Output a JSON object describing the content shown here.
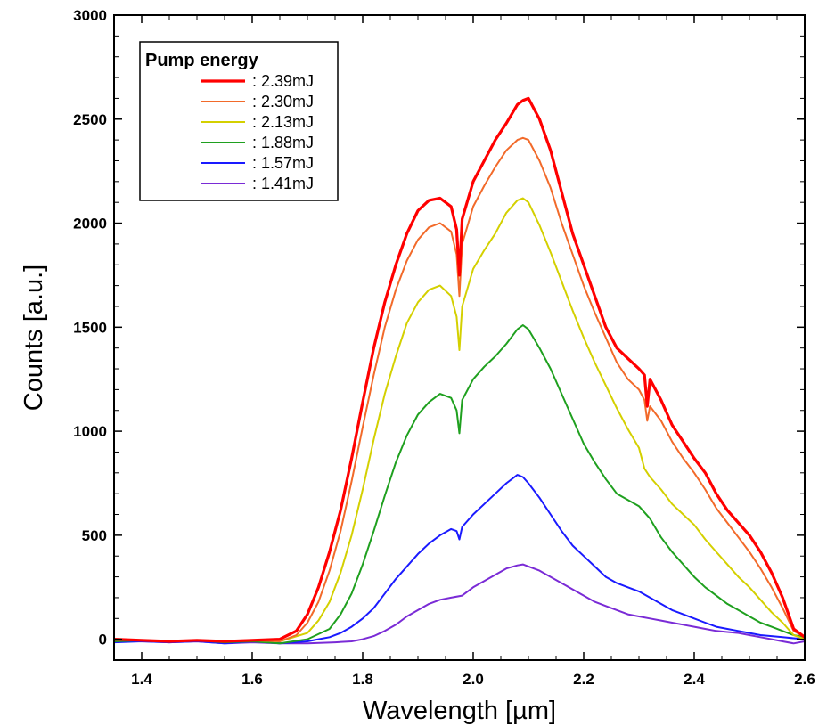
{
  "chart_data": {
    "type": "line",
    "xlabel": "Wavelength [µm]",
    "ylabel": "Counts [a.u.]",
    "xlim": [
      1.35,
      2.6
    ],
    "ylim": [
      -100,
      3000
    ],
    "x_ticks": [
      1.4,
      1.6,
      1.8,
      2.0,
      2.2,
      2.4,
      2.6
    ],
    "x_tick_labels": [
      "1.4",
      "1.6",
      "1.8",
      "2.0",
      "2.2",
      "2.4",
      "2.6"
    ],
    "y_ticks": [
      0,
      500,
      1000,
      1500,
      2000,
      2500,
      3000
    ],
    "y_tick_labels": [
      "0",
      "500",
      "1000",
      "1500",
      "2000",
      "2500",
      "3000"
    ],
    "grid": false,
    "legend": {
      "title": "Pump energy",
      "placement": "top-left"
    },
    "series": [
      {
        "name": ": 2.39mJ",
        "color": "#ff0000",
        "width": 3.2,
        "x": [
          1.35,
          1.4,
          1.45,
          1.5,
          1.55,
          1.6,
          1.65,
          1.68,
          1.7,
          1.72,
          1.74,
          1.76,
          1.78,
          1.8,
          1.82,
          1.84,
          1.86,
          1.88,
          1.9,
          1.92,
          1.94,
          1.96,
          1.97,
          1.975,
          1.98,
          2.0,
          2.02,
          2.04,
          2.06,
          2.08,
          2.09,
          2.1,
          2.12,
          2.14,
          2.16,
          2.18,
          2.2,
          2.22,
          2.24,
          2.26,
          2.28,
          2.3,
          2.31,
          2.315,
          2.32,
          2.34,
          2.36,
          2.38,
          2.4,
          2.42,
          2.44,
          2.46,
          2.48,
          2.5,
          2.52,
          2.54,
          2.56,
          2.58,
          2.6
        ],
        "y": [
          0,
          -5,
          -10,
          -5,
          -10,
          -5,
          0,
          40,
          120,
          250,
          420,
          620,
          870,
          1140,
          1400,
          1620,
          1800,
          1950,
          2060,
          2110,
          2120,
          2080,
          1970,
          1750,
          2020,
          2200,
          2300,
          2400,
          2480,
          2570,
          2590,
          2600,
          2500,
          2350,
          2150,
          1950,
          1800,
          1650,
          1500,
          1400,
          1350,
          1300,
          1270,
          1120,
          1250,
          1150,
          1030,
          950,
          870,
          800,
          700,
          620,
          560,
          500,
          420,
          320,
          200,
          50,
          10
        ]
      },
      {
        "name": ": 2.30mJ",
        "color": "#f26a2a",
        "width": 2,
        "x": [
          1.35,
          1.4,
          1.45,
          1.5,
          1.55,
          1.6,
          1.65,
          1.68,
          1.7,
          1.72,
          1.74,
          1.76,
          1.78,
          1.8,
          1.82,
          1.84,
          1.86,
          1.88,
          1.9,
          1.92,
          1.94,
          1.96,
          1.97,
          1.975,
          1.98,
          2.0,
          2.02,
          2.04,
          2.06,
          2.08,
          2.09,
          2.1,
          2.12,
          2.14,
          2.16,
          2.18,
          2.2,
          2.22,
          2.24,
          2.26,
          2.28,
          2.3,
          2.31,
          2.315,
          2.32,
          2.34,
          2.36,
          2.38,
          2.4,
          2.42,
          2.44,
          2.46,
          2.48,
          2.5,
          2.52,
          2.54,
          2.56,
          2.58,
          2.6
        ],
        "y": [
          0,
          -5,
          -10,
          -5,
          -10,
          -5,
          -10,
          20,
          80,
          180,
          330,
          520,
          760,
          1020,
          1270,
          1500,
          1680,
          1820,
          1920,
          1980,
          2000,
          1960,
          1850,
          1650,
          1900,
          2080,
          2180,
          2270,
          2350,
          2400,
          2410,
          2400,
          2300,
          2170,
          2000,
          1850,
          1700,
          1570,
          1450,
          1330,
          1250,
          1200,
          1150,
          1050,
          1120,
          1050,
          950,
          870,
          800,
          720,
          630,
          560,
          490,
          420,
          340,
          250,
          150,
          40,
          10
        ]
      },
      {
        "name": ": 2.13mJ",
        "color": "#d4d000",
        "width": 2,
        "x": [
          1.35,
          1.4,
          1.45,
          1.5,
          1.55,
          1.6,
          1.65,
          1.7,
          1.72,
          1.74,
          1.76,
          1.78,
          1.8,
          1.82,
          1.84,
          1.86,
          1.88,
          1.9,
          1.92,
          1.94,
          1.96,
          1.97,
          1.975,
          1.98,
          2.0,
          2.02,
          2.04,
          2.06,
          2.08,
          2.09,
          2.1,
          2.12,
          2.14,
          2.16,
          2.18,
          2.2,
          2.22,
          2.24,
          2.26,
          2.28,
          2.3,
          2.31,
          2.32,
          2.34,
          2.36,
          2.38,
          2.4,
          2.42,
          2.44,
          2.46,
          2.48,
          2.5,
          2.52,
          2.54,
          2.56,
          2.58,
          2.6
        ],
        "y": [
          0,
          -5,
          -10,
          -5,
          -10,
          -5,
          -10,
          30,
          90,
          180,
          320,
          500,
          720,
          960,
          1180,
          1360,
          1520,
          1620,
          1680,
          1700,
          1650,
          1550,
          1390,
          1600,
          1780,
          1870,
          1950,
          2050,
          2110,
          2120,
          2100,
          1990,
          1860,
          1720,
          1580,
          1450,
          1330,
          1220,
          1110,
          1010,
          920,
          820,
          780,
          720,
          650,
          600,
          550,
          480,
          420,
          360,
          300,
          250,
          190,
          130,
          80,
          20,
          0
        ]
      },
      {
        "name": ": 1.88mJ",
        "color": "#1fa01f",
        "width": 2,
        "x": [
          1.35,
          1.4,
          1.45,
          1.5,
          1.55,
          1.6,
          1.65,
          1.7,
          1.74,
          1.76,
          1.78,
          1.8,
          1.82,
          1.84,
          1.86,
          1.88,
          1.9,
          1.92,
          1.94,
          1.96,
          1.97,
          1.975,
          1.98,
          2.0,
          2.02,
          2.04,
          2.06,
          2.08,
          2.09,
          2.1,
          2.12,
          2.14,
          2.16,
          2.18,
          2.2,
          2.22,
          2.24,
          2.26,
          2.28,
          2.3,
          2.32,
          2.34,
          2.36,
          2.38,
          2.4,
          2.42,
          2.44,
          2.46,
          2.48,
          2.5,
          2.52,
          2.54,
          2.56,
          2.58,
          2.6
        ],
        "y": [
          -10,
          -5,
          -10,
          -5,
          -15,
          -10,
          -20,
          0,
          50,
          120,
          220,
          360,
          520,
          690,
          850,
          980,
          1080,
          1140,
          1180,
          1160,
          1100,
          990,
          1150,
          1250,
          1310,
          1360,
          1420,
          1490,
          1510,
          1490,
          1400,
          1300,
          1180,
          1060,
          940,
          850,
          770,
          700,
          670,
          640,
          580,
          490,
          420,
          360,
          300,
          250,
          210,
          170,
          140,
          110,
          80,
          60,
          40,
          20,
          10
        ]
      },
      {
        "name": ": 1.57mJ",
        "color": "#1a1aff",
        "width": 2,
        "x": [
          1.35,
          1.4,
          1.45,
          1.5,
          1.55,
          1.6,
          1.65,
          1.7,
          1.72,
          1.74,
          1.76,
          1.78,
          1.8,
          1.82,
          1.84,
          1.86,
          1.88,
          1.9,
          1.92,
          1.94,
          1.96,
          1.97,
          1.975,
          1.98,
          2.0,
          2.02,
          2.04,
          2.06,
          2.08,
          2.09,
          2.1,
          2.12,
          2.14,
          2.16,
          2.18,
          2.2,
          2.22,
          2.24,
          2.26,
          2.28,
          2.3,
          2.32,
          2.34,
          2.36,
          2.38,
          2.4,
          2.42,
          2.44,
          2.46,
          2.48,
          2.5,
          2.52,
          2.54,
          2.56,
          2.58,
          2.6
        ],
        "y": [
          -15,
          -10,
          -15,
          -10,
          -20,
          -10,
          -20,
          -10,
          0,
          10,
          30,
          60,
          100,
          150,
          220,
          290,
          350,
          410,
          460,
          500,
          530,
          520,
          480,
          540,
          600,
          650,
          700,
          750,
          790,
          780,
          750,
          680,
          600,
          520,
          450,
          400,
          350,
          300,
          270,
          250,
          230,
          200,
          170,
          140,
          120,
          100,
          80,
          60,
          50,
          40,
          30,
          20,
          15,
          10,
          5,
          0
        ]
      },
      {
        "name": ": 1.41mJ",
        "color": "#7a2bd6",
        "width": 2,
        "x": [
          1.35,
          1.4,
          1.45,
          1.5,
          1.55,
          1.6,
          1.65,
          1.7,
          1.75,
          1.78,
          1.8,
          1.82,
          1.84,
          1.86,
          1.88,
          1.9,
          1.92,
          1.94,
          1.96,
          1.98,
          2.0,
          2.02,
          2.04,
          2.06,
          2.08,
          2.09,
          2.1,
          2.12,
          2.14,
          2.16,
          2.18,
          2.2,
          2.22,
          2.24,
          2.26,
          2.28,
          2.3,
          2.32,
          2.34,
          2.36,
          2.38,
          2.4,
          2.42,
          2.44,
          2.46,
          2.48,
          2.5,
          2.52,
          2.54,
          2.56,
          2.58,
          2.6
        ],
        "y": [
          -10,
          -10,
          -15,
          -10,
          -20,
          -15,
          -20,
          -20,
          -15,
          -10,
          0,
          15,
          40,
          70,
          110,
          140,
          170,
          190,
          200,
          210,
          250,
          280,
          310,
          340,
          355,
          360,
          350,
          330,
          300,
          270,
          240,
          210,
          180,
          160,
          140,
          120,
          110,
          100,
          90,
          80,
          70,
          60,
          50,
          40,
          35,
          30,
          20,
          10,
          0,
          -10,
          -20,
          -10
        ]
      }
    ]
  }
}
